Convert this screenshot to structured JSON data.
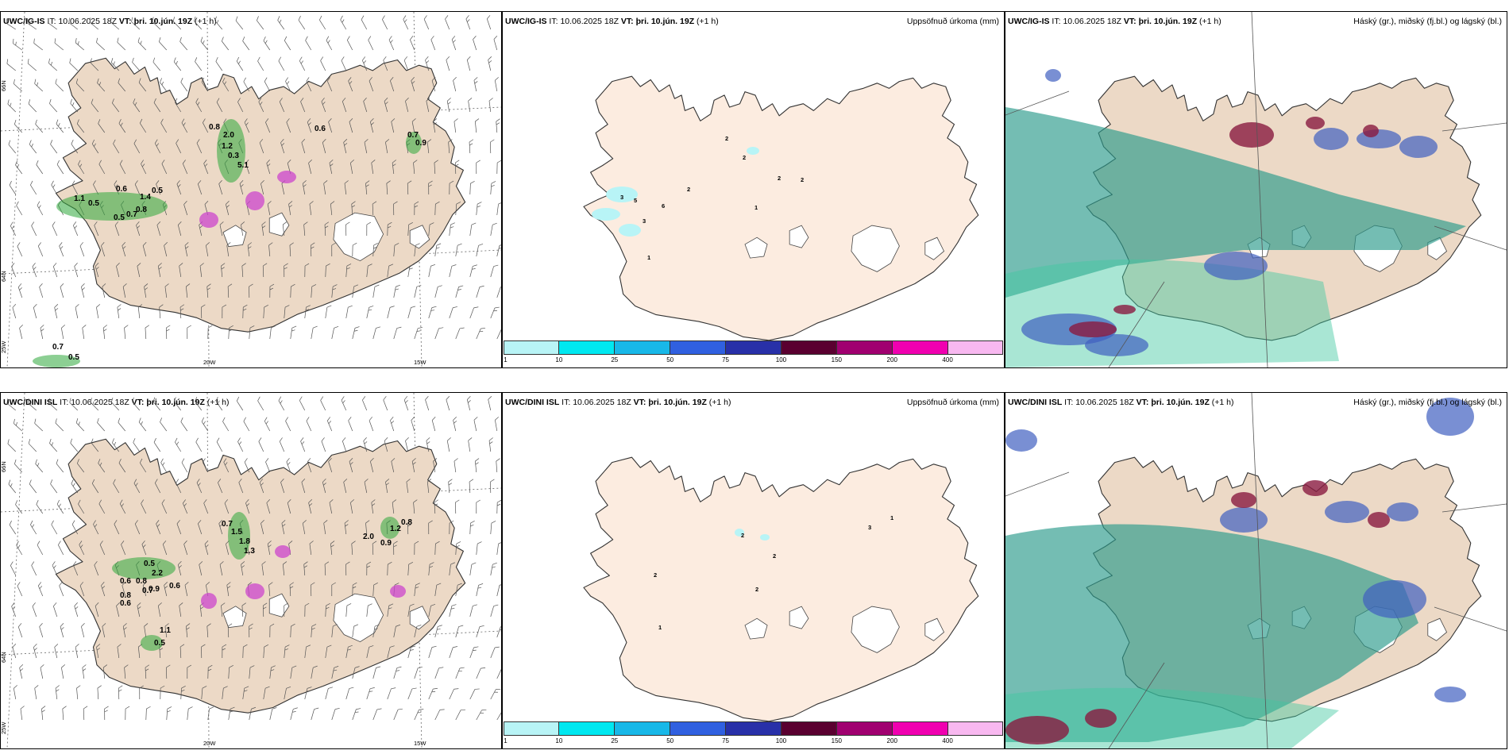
{
  "panels": {
    "p1": {
      "model": "UWC/IG-IS",
      "it_label": "IT:",
      "it": "10.06.2025 18Z",
      "vt_label": "VT:",
      "vt": "þri. 10.jún. 19Z",
      "lead": "(+1 h)",
      "right": ""
    },
    "p2": {
      "model": "UWC/IG-IS",
      "it_label": "IT:",
      "it": "10.06.2025 18Z",
      "vt_label": "VT:",
      "vt": "þri. 10.jún. 19Z",
      "lead": "(+1 h)",
      "right": "Uppsöfnuð úrkoma (mm)"
    },
    "p3": {
      "model": "UWC/IG-IS",
      "it_label": "IT:",
      "it": "10.06.2025 18Z",
      "vt_label": "VT:",
      "vt": "þri. 10.jún. 19Z",
      "lead": "(+1 h)",
      "right": "Háský (gr.), miðský (fj.bl.) og lágský (bl.)"
    },
    "p4": {
      "model": "UWC/DINI ISL",
      "it_label": "IT:",
      "it": "10.06.2025 18Z",
      "vt_label": "VT:",
      "vt": "þri. 10.jún. 19Z",
      "lead": "(+1 h)",
      "right": ""
    },
    "p5": {
      "model": "UWC/DINI ISL",
      "it_label": "IT:",
      "it": "10.06.2025 18Z",
      "vt_label": "VT:",
      "vt": "þri. 10.jún. 19Z",
      "lead": "(+1 h)",
      "right": "Uppsöfnuð úrkoma (mm)"
    },
    "p6": {
      "model": "UWC/DINI ISL",
      "it_label": "IT:",
      "it": "10.06.2025 18Z",
      "vt_label": "VT:",
      "vt": "þri. 10.jún. 19Z",
      "lead": "(+1 h)",
      "right": "Háský (gr.), miðský (fj.bl.) og lágský (bl.)"
    }
  },
  "grid_labels": {
    "lat_66": "66N",
    "lat_64": "64N",
    "lon_25": "25W",
    "lon_20": "20W",
    "lon_15": "15W"
  },
  "colorbar": {
    "colors": [
      "#b8f4f6",
      "#00e8f0",
      "#18b8e8",
      "#3060e0",
      "#2830a8",
      "#5a0030",
      "#a00070",
      "#f000b0",
      "#f8b8f0"
    ],
    "ticks": [
      "1",
      "10",
      "25",
      "50",
      "75",
      "100",
      "150",
      "200",
      "400"
    ]
  },
  "rain_labels_top": [
    "0.8",
    "2.0",
    "1.2",
    "0.3",
    "5.1",
    "0.6",
    "1.4",
    "0.5",
    "0.8",
    "0.7",
    "0.5",
    "1.1",
    "0.5",
    "0.7",
    "0.9",
    "0.6",
    "0.7",
    "0.5"
  ],
  "rain_labels_bottom": [
    "0.7",
    "1.5",
    "1.8",
    "1.3",
    "0.5",
    "0.6",
    "2.2",
    "0.8",
    "0.7",
    "0.8",
    "0.6",
    "0.9",
    "0.6",
    "2.0",
    "0.9",
    "1.2",
    "0.8",
    "1.1",
    "0.5"
  ],
  "precip_labels_top": [
    "2",
    "2",
    "2",
    "2",
    "2",
    "3",
    "5",
    "6",
    "3",
    "1",
    "1"
  ],
  "precip_labels_bottom": [
    "2",
    "2",
    "2",
    "3",
    "1",
    "2",
    "1"
  ],
  "colors": {
    "land": "#ecd9c6",
    "land_light": "#fcece0",
    "ice": "#ffffff",
    "rain_green": "#2ea83a",
    "snow_magenta": "#cc44cc",
    "high_cloud": "#2a9a8a",
    "mid_cloud": "#4060c0",
    "low_cloud": "#8a1a40"
  }
}
